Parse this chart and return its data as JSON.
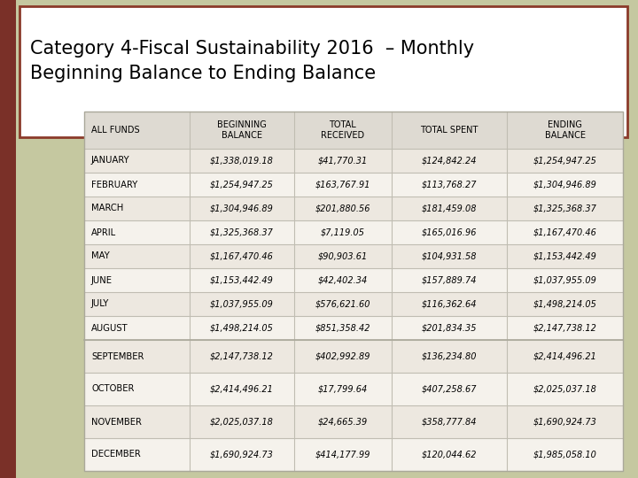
{
  "title_line1": "Category 4-Fiscal Sustainability 2016  – Monthly",
  "title_line2": "Beginning Balance to Ending Balance",
  "title_fontsize": 15,
  "bg_color": "#c5c8a0",
  "title_box_color": "#ffffff",
  "title_border_color": "#8b3a2a",
  "left_bar_color": "#7a3028",
  "table_header": [
    "ALL FUNDS",
    "BEGINNING\nBALANCE",
    "TOTAL\nRECEIVED",
    "TOTAL SPENT",
    "ENDING\nBALANCE"
  ],
  "rows": [
    [
      "JANUARY",
      "$1,338,019.18",
      "$41,770.31",
      "$124,842.24",
      "$1,254,947.25"
    ],
    [
      "FEBRUARY",
      "$1,254,947.25",
      "$163,767.91",
      "$113,768.27",
      "$1,304,946.89"
    ],
    [
      "MARCH",
      "$1,304,946.89",
      "$201,880.56",
      "$181,459.08",
      "$1,325,368.37"
    ],
    [
      "APRIL",
      "$1,325,368.37",
      "$7,119.05",
      "$165,016.96",
      "$1,167,470.46"
    ],
    [
      "MAY",
      "$1,167,470.46",
      "$90,903.61",
      "$104,931.58",
      "$1,153,442.49"
    ],
    [
      "JUNE",
      "$1,153,442.49",
      "$42,402.34",
      "$157,889.74",
      "$1,037,955.09"
    ],
    [
      "JULY",
      "$1,037,955.09",
      "$576,621.60",
      "$116,362.64",
      "$1,498,214.05"
    ],
    [
      "AUGUST",
      "$1,498,214.05",
      "$851,358.42",
      "$201,834.35",
      "$2,147,738.12"
    ],
    [
      "SEPTEMBER",
      "$2,147,738.12",
      "$402,992.89",
      "$136,234.80",
      "$2,414,496.21"
    ],
    [
      "OCTOBER",
      "$2,414,496.21",
      "$17,799.64",
      "$407,258.67",
      "$2,025,037.18"
    ],
    [
      "NOVEMBER",
      "$2,025,037.18",
      "$24,665.39",
      "$358,777.84",
      "$1,690,924.73"
    ],
    [
      "DECEMBER",
      "$1,690,924.73",
      "$414,177.99",
      "$120,044.62",
      "$1,985,058.10"
    ]
  ],
  "row_color_light": "#ede8e0",
  "row_color_white": "#f5f2ec",
  "header_color": "#dedad2",
  "table_border_color": "#aaa89a",
  "line_color": "#c0bdb2",
  "font_color": "#000000",
  "col_proportions": [
    0.195,
    0.195,
    0.18,
    0.215,
    0.215
  ]
}
